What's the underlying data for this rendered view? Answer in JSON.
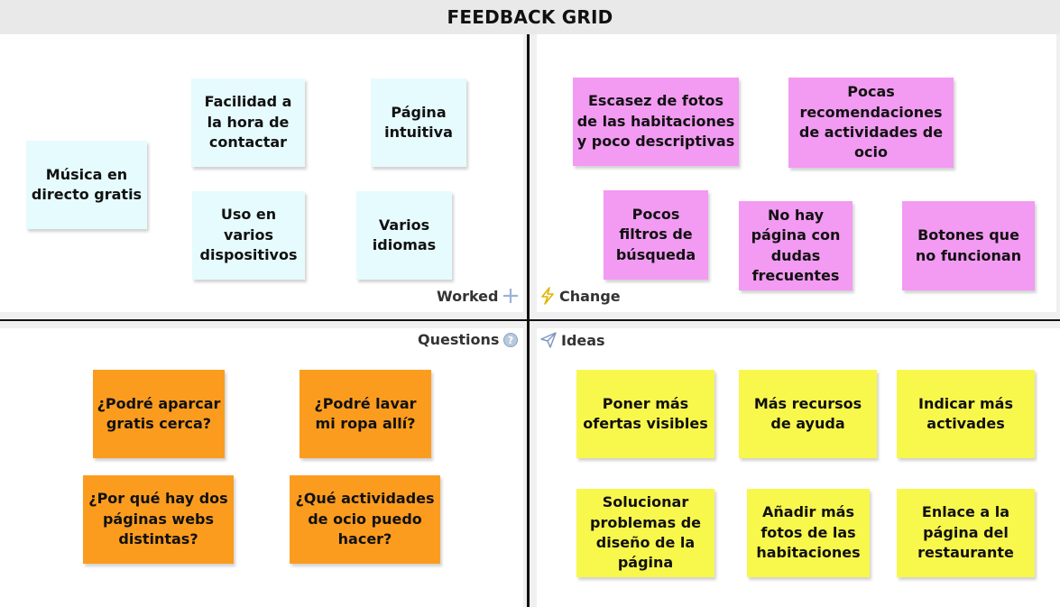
{
  "board": {
    "title": "FEEDBACK GRID"
  },
  "quadrants": {
    "worked": {
      "label": "Worked",
      "notes": [
        "Música en directo gratis",
        "Facilidad a la hora de contactar",
        "Página intuitiva",
        "Uso en varios dispositivos",
        "Varios idiomas"
      ]
    },
    "change": {
      "label": "Change",
      "notes": [
        "Escasez de fotos de las habitaciones y poco descriptivas",
        "Pocas recomendaciones de actividades de ocio",
        "Pocos filtros de búsqueda",
        "No hay página con dudas frecuentes",
        "Botones que no funcionan"
      ]
    },
    "questions": {
      "label": "Questions",
      "notes": [
        "¿Podré aparcar gratis cerca?",
        "¿Podré lavar mi ropa allí?",
        "¿Por qué hay dos páginas webs distintas?",
        "¿Qué actividades de ocio puedo hacer?"
      ]
    },
    "ideas": {
      "label": "Ideas",
      "notes": [
        "Poner más ofertas visibles",
        "Más recursos de ayuda",
        "Indicar más activades",
        "Solucionar problemas de diseño de la página",
        "Añadir más fotos de las habitaciones",
        "Enlace a la página del restaurante"
      ]
    }
  },
  "colors": {
    "worked_note": "#e6fbfd",
    "change_note": "#f39af3",
    "questions_note": "#fb9c1f",
    "ideas_note": "#f8f74c"
  },
  "icons": {
    "worked": "plus-icon",
    "change": "lightning-icon",
    "questions": "question-icon",
    "ideas": "paper-plane-icon"
  }
}
